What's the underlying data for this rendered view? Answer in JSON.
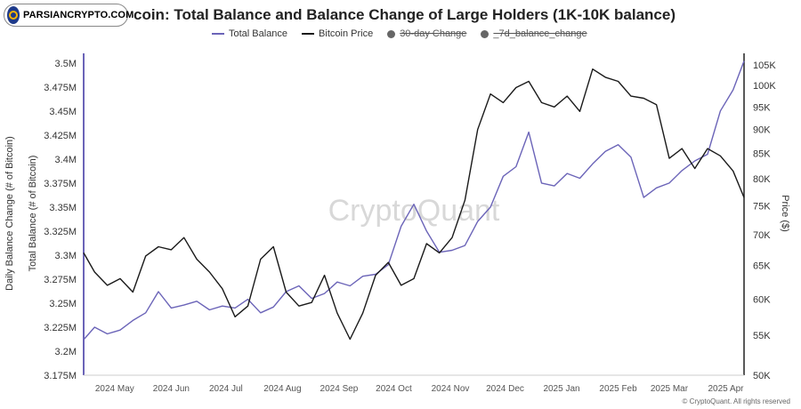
{
  "logo": {
    "text": "PARSIANCRYPTO.COM"
  },
  "title": "coin: Total Balance and Balance Change of Large Holders (1K-10K balance)",
  "legend": [
    {
      "label": "Total Balance",
      "color": "#6b64b8",
      "kind": "line",
      "hidden": false
    },
    {
      "label": "Bitcoin Price",
      "color": "#1a1a1a",
      "kind": "line",
      "hidden": false
    },
    {
      "label": "30-day Change",
      "color": "#666666",
      "kind": "dot",
      "hidden": true
    },
    {
      "label": "_7d_balance_change",
      "color": "#666666",
      "kind": "dot",
      "hidden": true
    }
  ],
  "watermark": "CryptoQuant",
  "copyright": "© CryptoQuant. All rights reserved",
  "chart_data": {
    "type": "line",
    "title": "coin: Total Balance and Balance Change of Large Holders (1K-10K balance)",
    "x_labels": [
      "2024 May",
      "2024 Jun",
      "2024 Jul",
      "2024 Aug",
      "2024 Sep",
      "2024 Oct",
      "2024 Nov",
      "2024 Dec",
      "2025 Jan",
      "2025 Feb",
      "2025 Mar",
      "2025 Apr"
    ],
    "x_range": [
      "2024-04-14",
      "2025-04-11"
    ],
    "left_axis": {
      "labels": [
        "Daily Balance Change (# of Bitcoin)",
        "Total Balance (# of Bitcoin)"
      ],
      "ticks": [
        "3.175M",
        "3.2M",
        "3.225M",
        "3.25M",
        "3.275M",
        "3.3M",
        "3.325M",
        "3.35M",
        "3.375M",
        "3.4M",
        "3.425M",
        "3.45M",
        "3.475M",
        "3.5M"
      ],
      "range": [
        3175000,
        3510000
      ]
    },
    "right_axis": {
      "label": "Price ($)",
      "scale": "log",
      "ticks": [
        "50K",
        "55K",
        "60K",
        "65K",
        "70K",
        "75K",
        "80K",
        "85K",
        "90K",
        "95K",
        "100K",
        "105K"
      ],
      "range": [
        50000,
        108000
      ]
    },
    "grid": false,
    "legend_position": "top-center",
    "series": [
      {
        "name": "Total Balance",
        "axis": "left",
        "color": "#6b64b8",
        "x": [
          "2024-04-14",
          "2024-04-20",
          "2024-04-27",
          "2024-05-04",
          "2024-05-11",
          "2024-05-18",
          "2024-05-25",
          "2024-06-01",
          "2024-06-08",
          "2024-06-15",
          "2024-06-22",
          "2024-06-29",
          "2024-07-06",
          "2024-07-13",
          "2024-07-20",
          "2024-07-27",
          "2024-08-03",
          "2024-08-10",
          "2024-08-17",
          "2024-08-24",
          "2024-08-31",
          "2024-09-07",
          "2024-09-14",
          "2024-09-21",
          "2024-09-28",
          "2024-10-05",
          "2024-10-12",
          "2024-10-19",
          "2024-10-26",
          "2024-11-02",
          "2024-11-09",
          "2024-11-16",
          "2024-11-23",
          "2024-11-30",
          "2024-12-07",
          "2024-12-14",
          "2024-12-21",
          "2024-12-28",
          "2025-01-04",
          "2025-01-11",
          "2025-01-18",
          "2025-01-25",
          "2025-02-01",
          "2025-02-08",
          "2025-02-15",
          "2025-02-22",
          "2025-03-01",
          "2025-03-08",
          "2025-03-15",
          "2025-03-22",
          "2025-03-29",
          "2025-04-05",
          "2025-04-11"
        ],
        "values": [
          3212000,
          3225000,
          3218000,
          3222000,
          3232000,
          3240000,
          3262000,
          3245000,
          3248000,
          3252000,
          3243000,
          3247000,
          3245000,
          3254000,
          3240000,
          3246000,
          3262000,
          3268000,
          3255000,
          3260000,
          3272000,
          3268000,
          3278000,
          3280000,
          3290000,
          3330000,
          3353000,
          3325000,
          3303000,
          3305000,
          3310000,
          3335000,
          3350000,
          3382000,
          3392000,
          3428000,
          3375000,
          3372000,
          3385000,
          3380000,
          3395000,
          3408000,
          3415000,
          3402000,
          3360000,
          3370000,
          3375000,
          3388000,
          3398000,
          3405000,
          3450000,
          3472000,
          3502000
        ]
      },
      {
        "name": "Bitcoin Price",
        "axis": "right",
        "color": "#1a1a1a",
        "x": [
          "2024-04-14",
          "2024-04-20",
          "2024-04-27",
          "2024-05-04",
          "2024-05-11",
          "2024-05-18",
          "2024-05-25",
          "2024-06-01",
          "2024-06-08",
          "2024-06-15",
          "2024-06-22",
          "2024-06-29",
          "2024-07-06",
          "2024-07-13",
          "2024-07-20",
          "2024-07-27",
          "2024-08-03",
          "2024-08-10",
          "2024-08-17",
          "2024-08-24",
          "2024-08-31",
          "2024-09-07",
          "2024-09-14",
          "2024-09-21",
          "2024-09-28",
          "2024-10-05",
          "2024-10-12",
          "2024-10-19",
          "2024-10-26",
          "2024-11-02",
          "2024-11-09",
          "2024-11-16",
          "2024-11-23",
          "2024-11-30",
          "2024-12-07",
          "2024-12-14",
          "2024-12-21",
          "2024-12-28",
          "2025-01-04",
          "2025-01-11",
          "2025-01-18",
          "2025-01-25",
          "2025-02-01",
          "2025-02-08",
          "2025-02-15",
          "2025-02-22",
          "2025-03-01",
          "2025-03-08",
          "2025-03-15",
          "2025-03-22",
          "2025-03-29",
          "2025-04-05",
          "2025-04-11"
        ],
        "values": [
          67000,
          64000,
          62000,
          63000,
          61000,
          66500,
          68000,
          67500,
          69500,
          66000,
          64000,
          61500,
          57500,
          59000,
          66000,
          68000,
          61000,
          59000,
          59500,
          63500,
          58000,
          54500,
          58000,
          63500,
          65500,
          62000,
          63000,
          68500,
          67000,
          69500,
          76000,
          90000,
          98000,
          96000,
          99500,
          101000,
          96000,
          95000,
          97500,
          94000,
          104000,
          102000,
          101000,
          97500,
          97000,
          95500,
          84000,
          86000,
          82000,
          86000,
          84500,
          81500,
          76500
        ]
      }
    ]
  }
}
